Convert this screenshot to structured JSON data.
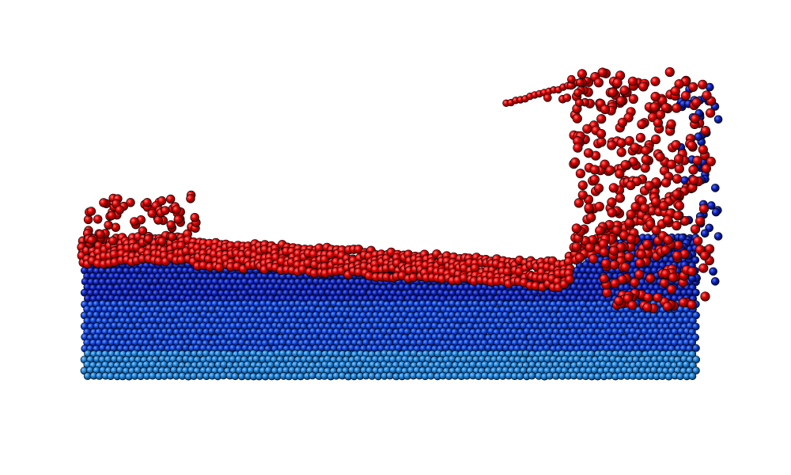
{
  "scene": {
    "background": "#ffffff",
    "colors": {
      "surface_particle": "#e00000",
      "surface_particle_highlight": "#ff6a6a",
      "deep_particle": "#0a1fb4",
      "mid_particle": "#0b3fd6",
      "bottom_particle": "#1a7fd8",
      "particle_outline": "#000000"
    },
    "particle_types": [
      "surface",
      "bulk"
    ]
  }
}
